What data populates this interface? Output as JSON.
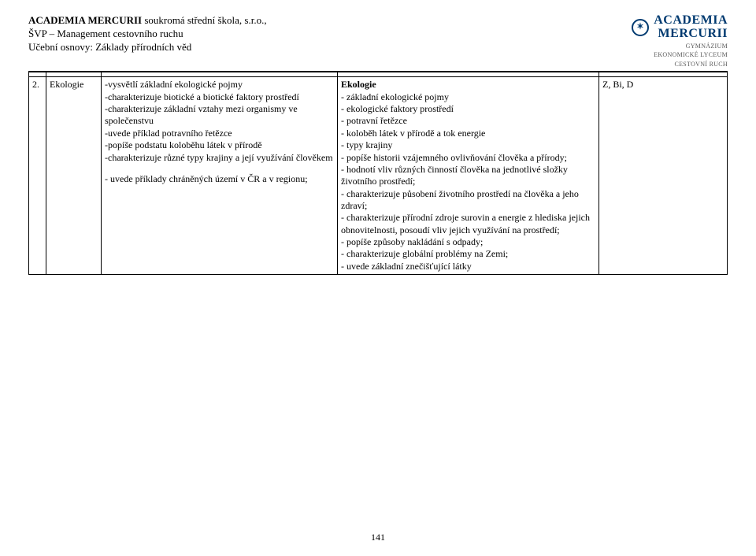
{
  "header": {
    "line1_a": "ACADEMIA MERCURII",
    "line1_b": "  soukromá střední škola, s.r.o.,",
    "line2": "ŠVP – Management cestovního ruchu",
    "line3": "Učební osnovy: Základy přírodních věd"
  },
  "logo": {
    "brand_a": "ACADEMIA",
    "brand_b": "MERCURII",
    "sub1": "GYMNÁZIUM",
    "sub2": "EKONOMICKÉ LYCEUM",
    "sub3": "CESTOVNÍ RUCH"
  },
  "row": {
    "num": "2.",
    "topic": "Ekologie",
    "activities": {
      "p1": "-vysvětlí základní ekologické pojmy",
      "p2": "-charakterizuje biotické a biotické faktory prostředí",
      "p3": "-charakterizuje základní vztahy mezi organismy ve společenstvu",
      "p4": "-uvede příklad potravního řetězce",
      "p5": "-popíše podstatu koloběhu látek v přírodě",
      "p6": "-charakterizuje různé typy krajiny a její využívání člověkem",
      "p7": "- uvede příklady chráněných území v ČR a v regionu;"
    },
    "outcomes": {
      "title": "Ekologie",
      "o1": "- základní ekologické pojmy",
      "o2": "- ekologické faktory prostředí",
      "o3": "- potravní řetězce",
      "o4": "- koloběh látek v přírodě a tok energie",
      "o5": "- typy krajiny",
      "o6": "- popíše historii vzájemného ovlivňování člověka a přírody;",
      "o7": "- hodnotí vliv různých činností člověka na jednotlivé složky životního prostředí;",
      "o8": "- charakterizuje působení životního prostředí na člověka a jeho zdraví;",
      "o9": "- charakterizuje přírodní zdroje surovin a energie z hlediska jejich obnovitelnosti, posoudí vliv jejich využívání na prostředí;",
      "o10": "- popíše způsoby nakládání s odpady;",
      "o11": "- charakterizuje globální problémy na Zemi;",
      "o12": "- uvede základní znečišťující látky"
    },
    "subjects": "Z, Bi, D"
  },
  "page_number": "141",
  "colors": {
    "text": "#000000",
    "brand": "#003a70",
    "logo_sub": "#5a5a5a",
    "background": "#ffffff",
    "border": "#000000"
  }
}
